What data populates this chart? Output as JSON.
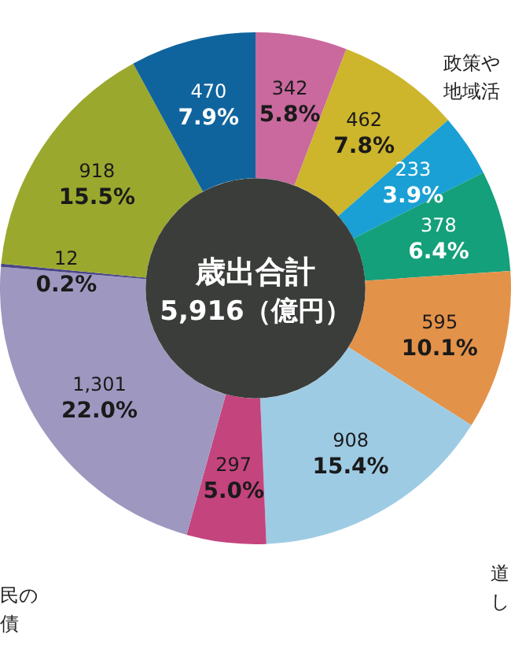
{
  "chart_data": {
    "type": "donut",
    "title": "歳出合計",
    "subtitle": "5,916（億円）",
    "categories": [
      null,
      null,
      null,
      null,
      null,
      null,
      null,
      null,
      null,
      null,
      null
    ],
    "values": [
      342,
      462,
      233,
      378,
      595,
      908,
      297,
      1301,
      12,
      918,
      470
    ],
    "colors": [
      "#c9699e",
      "#cdb52c",
      "#1aa0d4",
      "#14a07a",
      "#e3924a",
      "#9ecbe4",
      "#c4447e",
      "#9e98c0",
      "#4a4588",
      "#9ba82e",
      "#10649e"
    ],
    "value_labels": [
      "342\n5.8%",
      "462\n7.8%",
      "233\n3.9%",
      "378\n6.4%",
      "595\n10.1%",
      "908\n15.4%",
      "297\n5.0%",
      "1,301\n22.0%",
      "12\n0.2%",
      "918\n15.5%",
      "470\n7.9%"
    ],
    "annotations": [
      "政策や",
      "地域活",
      "道",
      "し",
      "民の",
      "債"
    ],
    "legend": false
  }
}
